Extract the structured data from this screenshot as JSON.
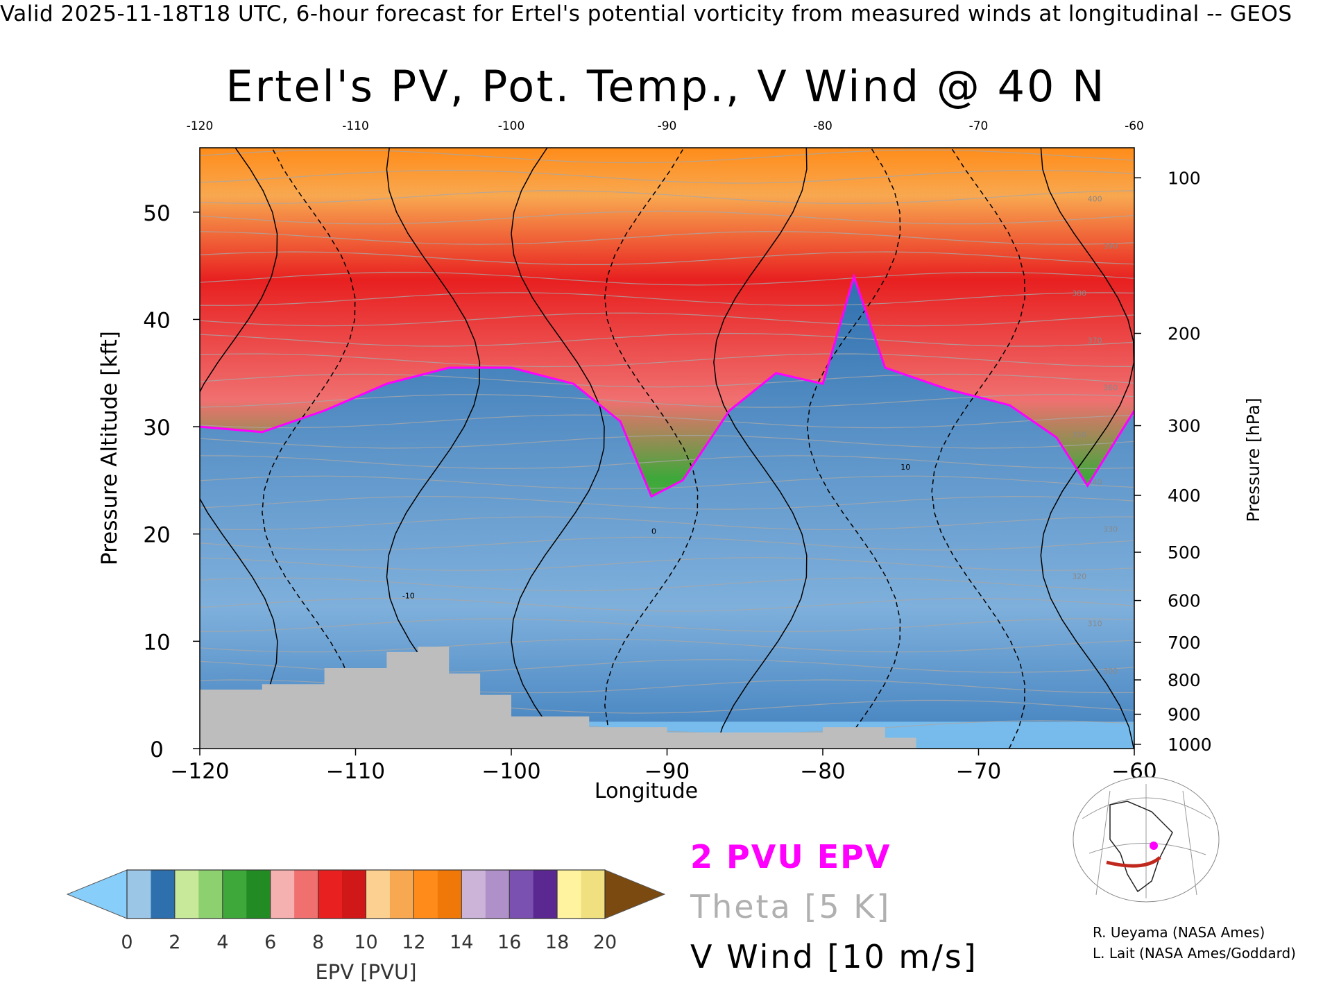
{
  "header": "Valid 2025-11-18T18 UTC, 6-hour forecast for Ertel's potential vorticity from measured winds at longitudinal -- GEOS",
  "chart_data": {
    "type": "heatmap",
    "title": "Ertel's PV, Pot. Temp., V Wind @ 40 N",
    "xlabel": "Longitude",
    "ylabel": "Pressure Altitude [kft]",
    "y2label": "Pressure [hPa]",
    "xlim": [
      -120,
      -60
    ],
    "ylim": [
      0,
      56
    ],
    "x_ticks": [
      "-120",
      "-110",
      "-100",
      "-90",
      "-80",
      "-70",
      "-60"
    ],
    "top_ticks": [
      "-120",
      "-110",
      "-100",
      "-90",
      "-80",
      "-70",
      "-60"
    ],
    "y_ticks": [
      "0",
      "10",
      "20",
      "30",
      "40",
      "50"
    ],
    "pressure_ticks": [
      {
        "label": "100",
        "kft": 53.2
      },
      {
        "label": "200",
        "kft": 38.7
      },
      {
        "label": "300",
        "kft": 30.1
      },
      {
        "label": "400",
        "kft": 23.6
      },
      {
        "label": "500",
        "kft": 18.3
      },
      {
        "label": "600",
        "kft": 13.8
      },
      {
        "label": "700",
        "kft": 9.9
      },
      {
        "label": "800",
        "kft": 6.4
      },
      {
        "label": "900",
        "kft": 3.2
      },
      {
        "label": "1000",
        "kft": 0.4
      }
    ],
    "colorbar": {
      "label": "EPV [PVU]",
      "ticks": [
        "0",
        "2",
        "4",
        "6",
        "8",
        "10",
        "12",
        "14",
        "16",
        "18",
        "20"
      ],
      "under_color": "#87cefa",
      "over_color": "#7a4a10",
      "colors": [
        "#9cc6e6",
        "#2e6fae",
        "#c8e89a",
        "#8cd070",
        "#3ea83a",
        "#238b23",
        "#f5b0b0",
        "#f07070",
        "#e82020",
        "#d01818",
        "#fcd090",
        "#f8a850",
        "#ff8c1a",
        "#f07808",
        "#ccb4d8",
        "#b090c8",
        "#7a50b0",
        "#5a2890",
        "#fff3a0",
        "#f0e080"
      ]
    },
    "tropopause_2pvu_kft": [
      {
        "lon": -120,
        "kft": 30.0
      },
      {
        "lon": -116,
        "kft": 29.5
      },
      {
        "lon": -112,
        "kft": 31.5
      },
      {
        "lon": -108,
        "kft": 34.0
      },
      {
        "lon": -104,
        "kft": 35.5
      },
      {
        "lon": -100,
        "kft": 35.5
      },
      {
        "lon": -96,
        "kft": 34.0
      },
      {
        "lon": -93,
        "kft": 30.5
      },
      {
        "lon": -91,
        "kft": 23.5
      },
      {
        "lon": -89,
        "kft": 25.0
      },
      {
        "lon": -86,
        "kft": 31.5
      },
      {
        "lon": -83,
        "kft": 35.0
      },
      {
        "lon": -80,
        "kft": 34.0
      },
      {
        "lon": -78,
        "kft": 44.0
      },
      {
        "lon": -76,
        "kft": 35.5
      },
      {
        "lon": -72,
        "kft": 33.5
      },
      {
        "lon": -68,
        "kft": 32.0
      },
      {
        "lon": -65,
        "kft": 29.0
      },
      {
        "lon": -63,
        "kft": 24.5
      },
      {
        "lon": -60,
        "kft": 31.5
      }
    ],
    "terrain_kft": [
      {
        "lon": -120,
        "kft": 5.5
      },
      {
        "lon": -116,
        "kft": 6.0
      },
      {
        "lon": -112,
        "kft": 7.5
      },
      {
        "lon": -108,
        "kft": 9.0
      },
      {
        "lon": -106,
        "kft": 9.5
      },
      {
        "lon": -104,
        "kft": 7.0
      },
      {
        "lon": -102,
        "kft": 5.0
      },
      {
        "lon": -100,
        "kft": 3.0
      },
      {
        "lon": -95,
        "kft": 2.0
      },
      {
        "lon": -90,
        "kft": 1.5
      },
      {
        "lon": -85,
        "kft": 1.5
      },
      {
        "lon": -80,
        "kft": 2.0
      },
      {
        "lon": -76,
        "kft": 1.0
      },
      {
        "lon": -74,
        "kft": 0.0
      }
    ],
    "theta_contour_labels": [
      "300",
      "310",
      "320",
      "330",
      "340",
      "350",
      "360",
      "370",
      "380",
      "390",
      "400"
    ],
    "v_wind_contour_labels": [
      "-10",
      "0",
      "10"
    ]
  },
  "legend": {
    "pv": "2 PVU EPV",
    "theta": "Theta [5 K]",
    "vwind": "V Wind [10 m/s]"
  },
  "credits": {
    "line1": "R. Ueyama (NASA Ames)",
    "line2": "L. Lait (NASA Ames/Goddard)"
  },
  "inset": {
    "map_colors": {
      "section_line": "#c0281e",
      "marker": "#ff00ff"
    }
  }
}
